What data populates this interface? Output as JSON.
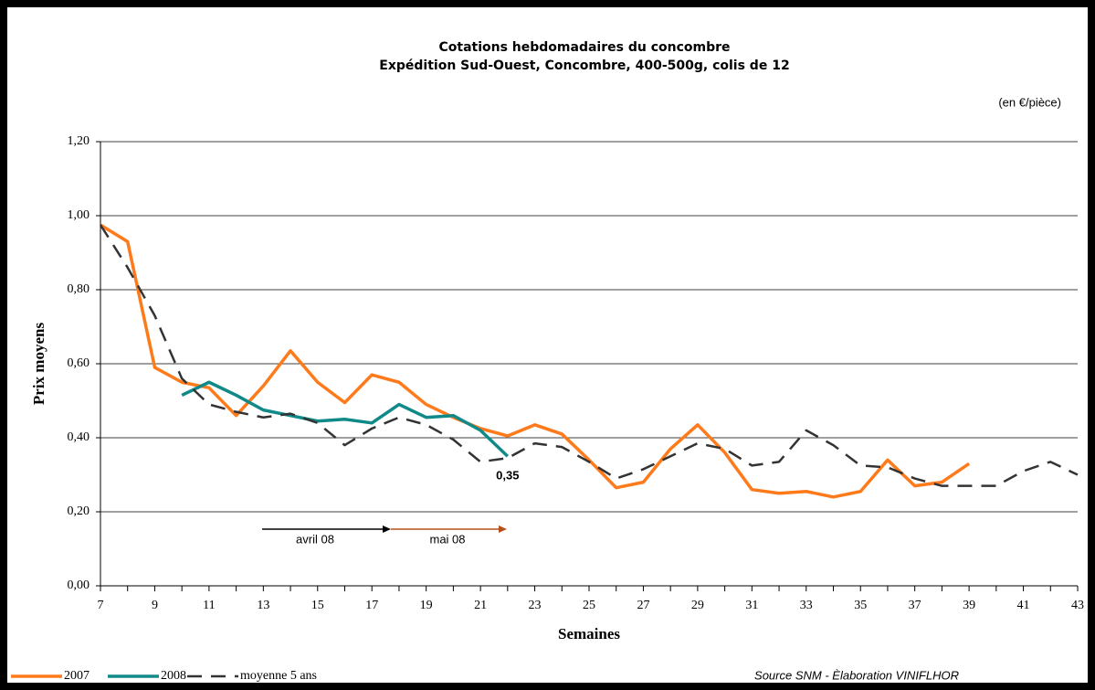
{
  "chart_data": {
    "type": "line",
    "title": "Cotations hebdomadaires du concombre",
    "subtitle": "Expédition Sud-Ouest, Concombre, 400-500g, colis de 12",
    "unit_note": "(en €/pièce)",
    "x_label": "Semaines",
    "y_label": "Prix moyens",
    "source": "Source SNM - Èlaboration VINIFLHOR",
    "annotations": [
      "avril 08",
      "mai 08"
    ],
    "x": [
      7,
      8,
      9,
      10,
      11,
      12,
      13,
      14,
      15,
      16,
      17,
      18,
      19,
      20,
      21,
      22,
      23,
      24,
      25,
      26,
      27,
      28,
      29,
      30,
      31,
      32,
      33,
      34,
      35,
      36,
      37,
      38,
      39,
      40,
      41,
      42,
      43
    ],
    "xlim": [
      7,
      43
    ],
    "xticks": [
      7,
      9,
      11,
      13,
      15,
      17,
      19,
      21,
      23,
      25,
      27,
      29,
      31,
      33,
      35,
      37,
      39,
      41,
      43
    ],
    "ylim": [
      0,
      1.2
    ],
    "yticks": [
      {
        "value": 0,
        "label": "0,00"
      },
      {
        "value": 0.2,
        "label": "0,20"
      },
      {
        "value": 0.4,
        "label": "0,40"
      },
      {
        "value": 0.6,
        "label": "0,60"
      },
      {
        "value": 0.8,
        "label": "0,80"
      },
      {
        "value": 1.0,
        "label": "1,00"
      },
      {
        "value": 1.2,
        "label": "1,20"
      }
    ],
    "grid": true,
    "legend": "bottom-left",
    "series": [
      {
        "name": "2007",
        "color": "#ff7a1a",
        "dash": false,
        "values": [
          0.975,
          0.93,
          0.59,
          0.55,
          0.535,
          0.46,
          0.54,
          0.635,
          0.55,
          0.495,
          0.57,
          0.55,
          0.49,
          0.455,
          0.425,
          0.405,
          0.435,
          0.41,
          0.34,
          0.265,
          0.28,
          0.37,
          0.435,
          0.36,
          0.26,
          0.25,
          0.255,
          0.24,
          0.255,
          0.34,
          0.27,
          0.28,
          0.33,
          null,
          null,
          null,
          null
        ]
      },
      {
        "name": "2008",
        "color": "#108a88",
        "dash": false,
        "values": [
          null,
          null,
          null,
          0.515,
          0.55,
          0.515,
          0.475,
          0.46,
          0.445,
          0.45,
          0.44,
          0.49,
          0.455,
          0.46,
          0.42,
          0.35,
          null,
          null,
          null,
          null,
          null,
          null,
          null,
          null,
          null,
          null,
          null,
          null,
          null,
          null,
          null,
          null,
          null,
          null,
          null,
          null,
          null
        ],
        "value_labels": [
          null,
          null,
          null,
          null,
          null,
          null,
          null,
          null,
          null,
          null,
          null,
          null,
          null,
          null,
          null,
          "0,35",
          null,
          null,
          null,
          null,
          null,
          null,
          null,
          null,
          null,
          null,
          null,
          null,
          null,
          null,
          null,
          null,
          null,
          null,
          null,
          null,
          null
        ]
      },
      {
        "name": "moyenne 5 ans",
        "color": "#333333",
        "dash": true,
        "values": [
          0.975,
          0.86,
          0.73,
          0.56,
          0.49,
          0.47,
          0.455,
          0.465,
          0.44,
          0.38,
          0.425,
          0.455,
          0.435,
          0.395,
          0.335,
          0.345,
          0.385,
          0.375,
          0.335,
          0.29,
          0.315,
          0.35,
          0.385,
          0.37,
          0.325,
          0.335,
          0.42,
          0.38,
          0.325,
          0.32,
          0.29,
          0.27,
          0.27,
          0.27,
          0.31,
          0.335,
          0.3
        ]
      }
    ]
  }
}
